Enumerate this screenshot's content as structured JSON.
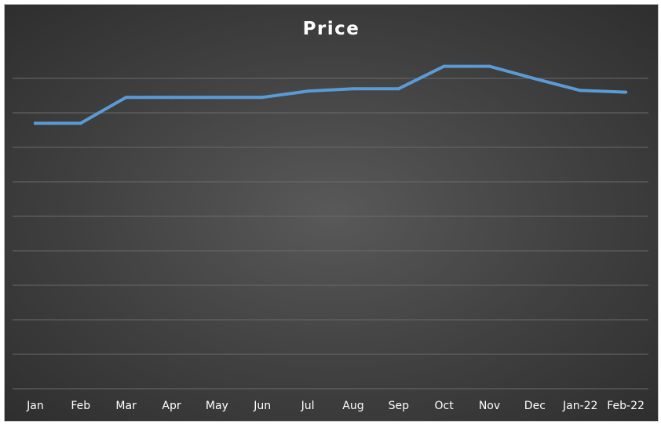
{
  "chart_data": {
    "type": "line",
    "title": "Price",
    "categories": [
      "Jan",
      "Feb",
      "Mar",
      "Apr",
      "May",
      "Jun",
      "Jul",
      "Aug",
      "Sep",
      "Oct",
      "Nov",
      "Dec",
      "Jan-22",
      "Feb-22"
    ],
    "series": [
      {
        "values": [
          7.7,
          7.7,
          8.45,
          8.45,
          8.45,
          8.45,
          8.63,
          8.7,
          8.7,
          9.35,
          9.35,
          8.99,
          8.65,
          8.6
        ]
      }
    ],
    "ylim": [
      0,
      10.5
    ],
    "grid": true,
    "legend": "none",
    "colors": {
      "line": "#5b9bd5",
      "background": "#404040",
      "grid": "#6a6a6a",
      "text": "#ffffff"
    }
  }
}
